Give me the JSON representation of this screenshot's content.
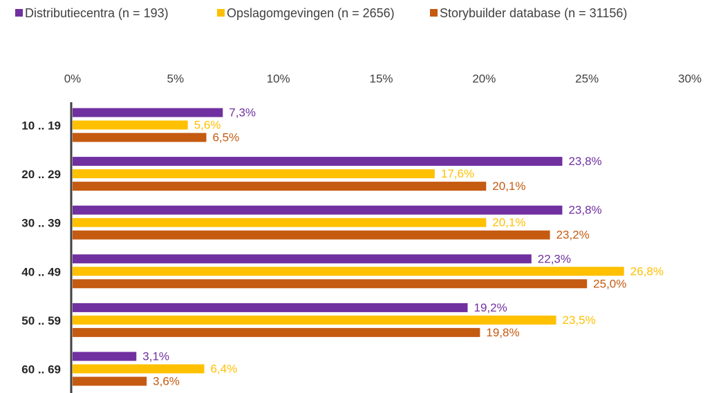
{
  "chart_data": {
    "type": "bar",
    "orientation": "horizontal",
    "categories": [
      "10 .. 19",
      "20 .. 29",
      "30 .. 39",
      "40 .. 49",
      "50 .. 59",
      "60 .. 69"
    ],
    "series": [
      {
        "name": "Distributiecentra (n = 193)",
        "color": "#7030a0",
        "values": [
          7.3,
          23.8,
          23.8,
          22.3,
          19.2,
          3.1
        ],
        "value_labels": [
          "7,3%",
          "23,8%",
          "23,8%",
          "22,3%",
          "19,2%",
          "3,1%"
        ]
      },
      {
        "name": "Opslagomgevingen (n = 2656)",
        "color": "#ffc000",
        "values": [
          5.6,
          17.6,
          20.1,
          26.8,
          23.5,
          6.4
        ],
        "value_labels": [
          "5,6%",
          "17,6%",
          "20,1%",
          "26,8%",
          "23,5%",
          "6,4%"
        ]
      },
      {
        "name": "Storybuilder database (n = 31156)",
        "color": "#c55a11",
        "values": [
          6.5,
          20.1,
          23.2,
          25.0,
          19.8,
          3.6
        ],
        "value_labels": [
          "6,5%",
          "20,1%",
          "23,2%",
          "25,0%",
          "19,8%",
          "3,6%"
        ]
      }
    ],
    "xlim": [
      0,
      30
    ],
    "xticks": [
      {
        "value": 0,
        "label": "0%"
      },
      {
        "value": 5,
        "label": "5%"
      },
      {
        "value": 10,
        "label": "10%"
      },
      {
        "value": 15,
        "label": "15%"
      },
      {
        "value": 20,
        "label": "20%"
      },
      {
        "value": 25,
        "label": "25%"
      },
      {
        "value": 30,
        "label": "30%"
      }
    ],
    "legend": "top",
    "grid": false
  }
}
